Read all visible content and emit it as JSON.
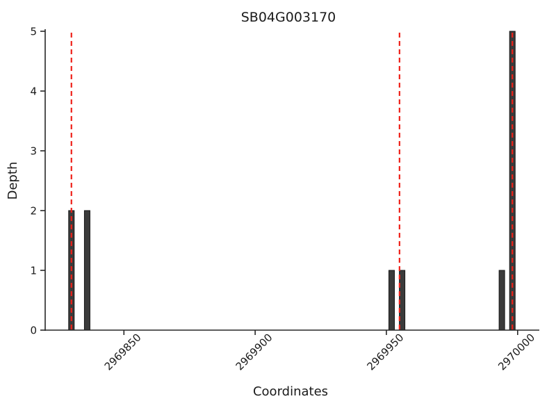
{
  "chart_data": {
    "type": "bar",
    "title": "SB04G003170",
    "xlabel": "Coordinates",
    "ylabel": "Depth",
    "xlim": [
      2969820,
      2970008
    ],
    "ylim": [
      0,
      5
    ],
    "xticks": [
      2969850,
      2969900,
      2969950,
      2970000
    ],
    "yticks": [
      0,
      1,
      2,
      3,
      4,
      5
    ],
    "bars": [
      {
        "x": 2969830,
        "depth": 2
      },
      {
        "x": 2969836,
        "depth": 2
      },
      {
        "x": 2969952,
        "depth": 1
      },
      {
        "x": 2969956,
        "depth": 1
      },
      {
        "x": 2969994,
        "depth": 1
      },
      {
        "x": 2969998,
        "depth": 5
      }
    ],
    "vlines": [
      2969830,
      2969955,
      2969998
    ],
    "grid": false,
    "colors": {
      "bar_fill": "#3b3b3b",
      "bar_edge": "#161616",
      "vline": "#ee2119",
      "axis": "#262626",
      "text": "#1a1a1a",
      "background": "#ffffff"
    }
  }
}
